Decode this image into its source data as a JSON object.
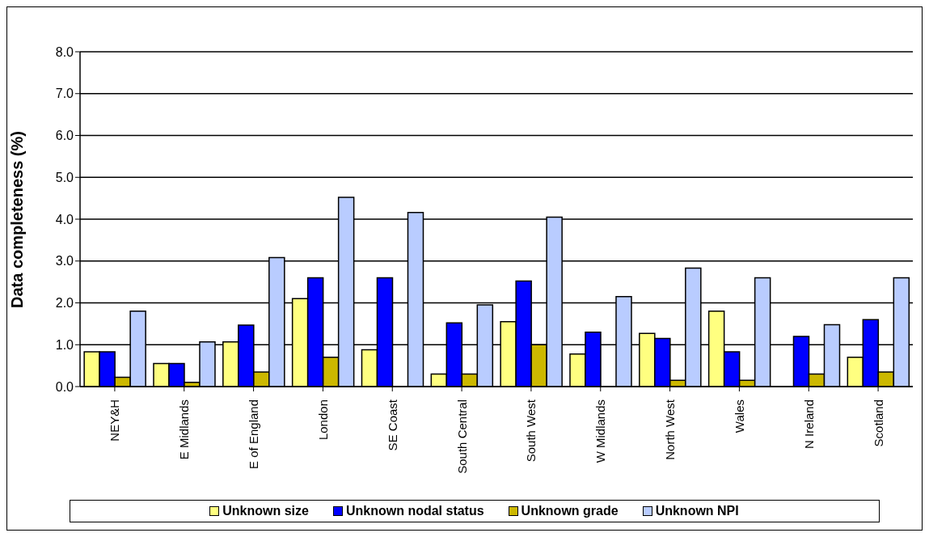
{
  "chart_data": {
    "type": "bar",
    "ylabel": "Data completeness (%)",
    "categories": [
      "NEY&H",
      "E Midlands",
      "E of England",
      "London",
      "SE Coast",
      "South Central",
      "South West",
      "W Midlands",
      "North West",
      "Wales",
      "N Ireland",
      "Scotland"
    ],
    "series": [
      {
        "name": "Unknown size",
        "color": "#ffff80",
        "values": [
          0.83,
          0.55,
          1.07,
          2.1,
          0.88,
          0.3,
          1.55,
          0.78,
          1.27,
          1.8,
          0,
          0.7
        ]
      },
      {
        "name": "Unknown nodal status",
        "color": "#0000ff",
        "values": [
          0.83,
          0.55,
          1.47,
          2.6,
          2.6,
          1.52,
          2.52,
          1.3,
          1.15,
          0.83,
          1.2,
          1.6
        ]
      },
      {
        "name": "Unknown grade",
        "color": "#ccb800",
        "values": [
          0.22,
          0.1,
          0.35,
          0.7,
          0,
          0.3,
          1.0,
          0,
          0.15,
          0.15,
          0.3,
          0.35
        ]
      },
      {
        "name": "Unknown NPI",
        "color": "#b9ccff",
        "values": [
          1.8,
          1.07,
          3.08,
          4.52,
          4.16,
          1.95,
          4.05,
          2.15,
          2.83,
          2.6,
          1.48,
          2.6
        ]
      }
    ],
    "ylim": [
      0,
      8
    ],
    "yticks": [
      {
        "value": 0,
        "label": "0.0"
      },
      {
        "value": 1,
        "label": "1.0"
      },
      {
        "value": 2,
        "label": "2.0"
      },
      {
        "value": 3,
        "label": "3.0"
      },
      {
        "value": 4,
        "label": "4.0"
      },
      {
        "value": 5,
        "label": "5.0"
      },
      {
        "value": 6,
        "label": "6.0"
      },
      {
        "value": 7,
        "label": "7.0"
      },
      {
        "value": 8,
        "label": "8.0"
      }
    ],
    "grid": "y",
    "legend": "bottom"
  }
}
